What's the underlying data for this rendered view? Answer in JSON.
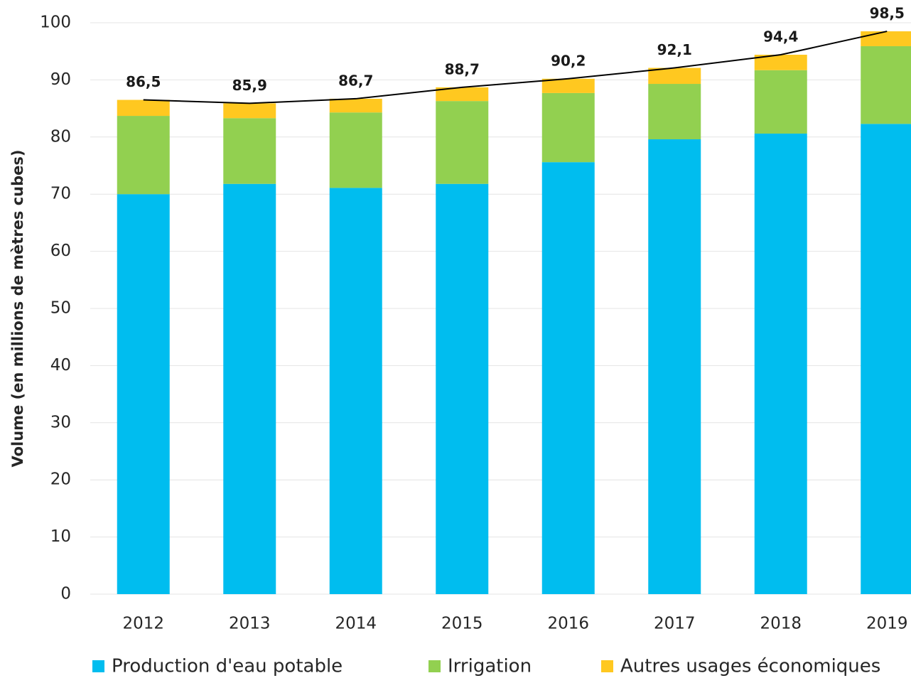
{
  "chart_data": {
    "type": "stacked_bar",
    "y_axis_label": "Volume (en millions de mètres cubes)",
    "categories": [
      "2012",
      "2013",
      "2014",
      "2015",
      "2016",
      "2017",
      "2018",
      "2019"
    ],
    "series": [
      {
        "name": "Production d'eau potable",
        "color": "#00bdef",
        "values": [
          70,
          71.8,
          71.1,
          71.8,
          75.6,
          79.6,
          80.6,
          82.3
        ]
      },
      {
        "name": "Irrigation",
        "color": "#92d050",
        "values": [
          13.7,
          11.5,
          13.2,
          14.5,
          12.1,
          9.7,
          11.1,
          13.6
        ]
      },
      {
        "name": "Autres usages économiques",
        "color": "#ffc820",
        "values": [
          2.8,
          2.6,
          2.4,
          2.4,
          2.5,
          2.8,
          2.7,
          2.6
        ]
      }
    ],
    "totals": {
      "color": "#000000",
      "values": [
        86.5,
        85.9,
        86.7,
        88.7,
        90.2,
        92.1,
        94.4,
        98.5
      ],
      "value_labels": [
        "86,5",
        "85,9",
        "86,7",
        "88,7",
        "90,2",
        "92,1",
        "94,4",
        "98,5"
      ]
    },
    "ylim": [
      0,
      100
    ],
    "yticks": [
      0,
      10,
      20,
      30,
      40,
      50,
      60,
      70,
      80,
      90,
      100
    ],
    "grid": true,
    "legend": "bottom"
  }
}
